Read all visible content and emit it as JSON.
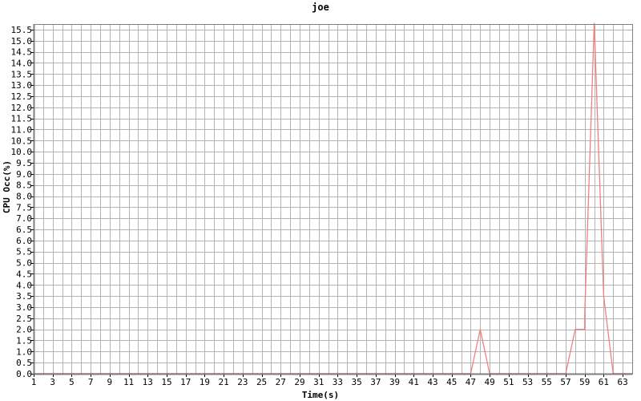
{
  "chart_data": {
    "type": "line",
    "title": "joe",
    "xlabel": "Time(s)",
    "ylabel": "CPU Occ(%)",
    "xlim": [
      1,
      64
    ],
    "ylim": [
      0,
      15.75
    ],
    "x_ticks": [
      1,
      3,
      5,
      7,
      9,
      11,
      13,
      15,
      17,
      19,
      21,
      23,
      25,
      27,
      29,
      31,
      33,
      35,
      37,
      39,
      41,
      43,
      45,
      47,
      49,
      51,
      53,
      55,
      57,
      59,
      61,
      63
    ],
    "y_ticks": [
      0.0,
      0.5,
      1.0,
      1.5,
      2.0,
      2.5,
      3.0,
      3.5,
      4.0,
      4.5,
      5.0,
      5.5,
      6.0,
      6.5,
      7.0,
      7.5,
      8.0,
      8.5,
      9.0,
      9.5,
      10.0,
      10.5,
      11.0,
      11.5,
      12.0,
      12.5,
      13.0,
      13.5,
      14.0,
      14.5,
      15.0,
      15.5
    ],
    "grid": true,
    "colors": {
      "line": "#f08080",
      "grid": "#b4b4b4",
      "axis": "#000000"
    },
    "series": [
      {
        "values": [
          {
            "x": 1,
            "y": 0
          },
          {
            "x": 47,
            "y": 0
          },
          {
            "x": 48,
            "y": 2.0
          },
          {
            "x": 49,
            "y": 0
          },
          {
            "x": 57,
            "y": 0
          },
          {
            "x": 58,
            "y": 2.0
          },
          {
            "x": 59,
            "y": 2.0
          },
          {
            "x": 59,
            "y": 2.6
          },
          {
            "x": 60,
            "y": 15.8
          },
          {
            "x": 61,
            "y": 3.5
          },
          {
            "x": 62,
            "y": 0
          },
          {
            "x": 64,
            "y": 0
          }
        ]
      }
    ]
  }
}
